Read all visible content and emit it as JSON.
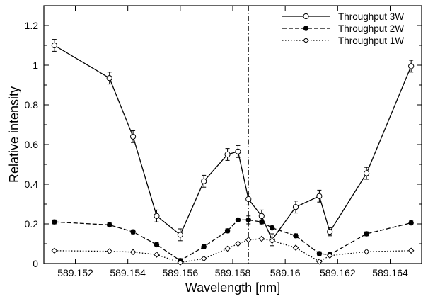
{
  "chart_data": {
    "type": "line",
    "xlabel": "Wavelength [nm]",
    "ylabel": "Relative intensity",
    "xlim": [
      589.1508,
      589.1652
    ],
    "ylim": [
      0,
      1.3
    ],
    "xticks": [
      589.152,
      589.154,
      589.156,
      589.158,
      589.16,
      589.162,
      589.164
    ],
    "xtick_labels": [
      "589.152",
      "589.154",
      "589.156",
      "589.158",
      "589.16",
      "589.162",
      "589.164"
    ],
    "yticks": [
      0,
      0.2,
      0.4,
      0.6,
      0.8,
      1,
      1.2
    ],
    "ytick_labels": [
      "0",
      "0.2",
      "0.4",
      "0.6",
      "0.8",
      "1",
      "1.2"
    ],
    "vertical_line_x": 589.1586,
    "legend_position": "top-right",
    "grid": false,
    "x": [
      589.1512,
      589.1533,
      589.1542,
      589.1551,
      589.156,
      589.1569,
      589.1578,
      589.1582,
      589.1586,
      589.1591,
      589.1595,
      589.1604,
      589.1613,
      589.1617,
      589.1631,
      589.1648
    ],
    "series": [
      {
        "name": "Throughput 3W",
        "line_style": "solid",
        "marker": "open-circle",
        "values": [
          1.1,
          0.935,
          0.64,
          0.24,
          0.145,
          0.415,
          0.55,
          0.565,
          0.325,
          0.24,
          0.12,
          0.285,
          0.34,
          0.16,
          0.455,
          0.995
        ],
        "errors": [
          0.03,
          0.03,
          0.03,
          0.03,
          0.03,
          0.03,
          0.03,
          0.03,
          0.03,
          0.03,
          0.03,
          0.03,
          0.03,
          0.02,
          0.03,
          0.03
        ]
      },
      {
        "name": "Throughput 2W",
        "line_style": "dashed",
        "marker": "filled-circle",
        "values": [
          0.21,
          0.195,
          0.16,
          0.095,
          0.015,
          0.085,
          0.165,
          0.22,
          0.22,
          0.21,
          0.18,
          0.14,
          0.05,
          0.045,
          0.15,
          0.205
        ],
        "errors": [
          0.01,
          0.01,
          0.01,
          0.01,
          0.01,
          0.01,
          0.01,
          0.01,
          0.02,
          0.01,
          0.01,
          0.01,
          0.01,
          0.01,
          0.01,
          0.01
        ]
      },
      {
        "name": "Throughput 1W",
        "line_style": "dotted",
        "marker": "open-diamond",
        "values": [
          0.065,
          0.062,
          0.058,
          0.045,
          0.005,
          0.025,
          0.075,
          0.1,
          0.12,
          0.125,
          0.115,
          0.08,
          0.01,
          0.04,
          0.06,
          0.065
        ],
        "errors": [
          0,
          0,
          0,
          0,
          0,
          0,
          0,
          0,
          0,
          0,
          0,
          0,
          0,
          0,
          0,
          0
        ]
      }
    ]
  }
}
